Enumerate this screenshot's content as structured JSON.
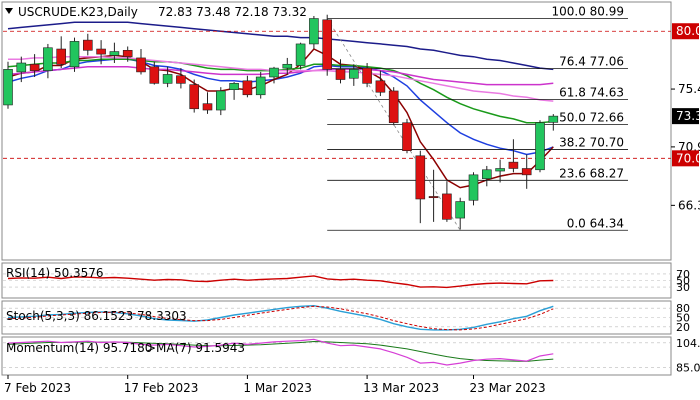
{
  "header": {
    "symbol": "USCRUDE.K23,Daily",
    "ohlc": "72.83 73.48 72.18 73.32"
  },
  "indicators": {
    "rsi_label": "RSI(14) 50.3576",
    "stoch_label": "Stoch(5,3,3) 86.1523 78.3303",
    "momentum_label": "Momentum(14) 95.7180",
    "momentum_ma_label": ">MA(7) 91.5943"
  },
  "colors": {
    "bull": "#22c55e",
    "bear": "#dd1111",
    "ema_blue": "#1e3fe0",
    "ema_red": "#8b0000",
    "ema_green": "#1a9a1a",
    "ma_violet": "#cc33cc",
    "ma_pink": "#ea7ae2",
    "ma_navy": "#1c1c8a",
    "fib_line": "#111111",
    "hline_red": "#cc0000",
    "price_tag_bg": "#000000",
    "level_tag_bg": "#cc0000"
  },
  "chart_data": {
    "type": "candlestick",
    "ylim": [
      62.0,
      82.3
    ],
    "dates_label": [
      "7 Feb 2023",
      "17 Feb 2023",
      "1 Mar 2023",
      "13 Mar 2023",
      "23 Mar 2023"
    ],
    "y_ticks": [
      "75.45",
      "70.90",
      "66.30"
    ],
    "current_price": "73.32",
    "level_tags": [
      "80.00",
      "70.00"
    ],
    "level_values": [
      80.0,
      70.0
    ],
    "fib_levels": [
      {
        "label": "100.0 80.99",
        "value": 80.99
      },
      {
        "label": "76.4 77.06",
        "value": 77.06
      },
      {
        "label": "61.8 74.63",
        "value": 74.63
      },
      {
        "label": "50.0 72.66",
        "value": 72.66
      },
      {
        "label": "38.2 70.70",
        "value": 70.7
      },
      {
        "label": "23.6 68.27",
        "value": 68.27
      },
      {
        "label": "0.0 64.34",
        "value": 64.34
      }
    ],
    "candles": [
      {
        "o": 74.2,
        "h": 77.6,
        "l": 73.9,
        "c": 77.0
      },
      {
        "o": 76.8,
        "h": 78.0,
        "l": 76.0,
        "c": 77.5
      },
      {
        "o": 77.4,
        "h": 78.2,
        "l": 76.4,
        "c": 76.9
      },
      {
        "o": 76.9,
        "h": 79.0,
        "l": 76.3,
        "c": 78.7
      },
      {
        "o": 78.6,
        "h": 79.6,
        "l": 77.1,
        "c": 77.4
      },
      {
        "o": 77.2,
        "h": 79.5,
        "l": 76.8,
        "c": 79.2
      },
      {
        "o": 79.3,
        "h": 79.8,
        "l": 78.1,
        "c": 78.5
      },
      {
        "o": 78.6,
        "h": 79.3,
        "l": 77.4,
        "c": 78.2
      },
      {
        "o": 78.1,
        "h": 79.1,
        "l": 77.5,
        "c": 78.4
      },
      {
        "o": 78.5,
        "h": 78.8,
        "l": 77.6,
        "c": 78.0
      },
      {
        "o": 77.9,
        "h": 78.6,
        "l": 76.6,
        "c": 76.8
      },
      {
        "o": 77.2,
        "h": 77.6,
        "l": 75.8,
        "c": 75.9
      },
      {
        "o": 75.9,
        "h": 77.2,
        "l": 75.6,
        "c": 76.6
      },
      {
        "o": 76.5,
        "h": 77.1,
        "l": 75.5,
        "c": 75.9
      },
      {
        "o": 75.8,
        "h": 76.2,
        "l": 73.6,
        "c": 73.9
      },
      {
        "o": 74.3,
        "h": 75.2,
        "l": 73.5,
        "c": 73.8
      },
      {
        "o": 73.8,
        "h": 75.6,
        "l": 73.4,
        "c": 75.3
      },
      {
        "o": 75.4,
        "h": 76.0,
        "l": 74.6,
        "c": 75.9
      },
      {
        "o": 76.1,
        "h": 76.5,
        "l": 74.8,
        "c": 75.0
      },
      {
        "o": 75.0,
        "h": 76.8,
        "l": 74.7,
        "c": 76.4
      },
      {
        "o": 76.4,
        "h": 77.2,
        "l": 75.9,
        "c": 77.1
      },
      {
        "o": 77.1,
        "h": 77.9,
        "l": 76.6,
        "c": 77.4
      },
      {
        "o": 77.3,
        "h": 79.1,
        "l": 77.0,
        "c": 79.0
      },
      {
        "o": 79.0,
        "h": 81.2,
        "l": 78.6,
        "c": 81.0
      },
      {
        "o": 80.9,
        "h": 81.3,
        "l": 76.5,
        "c": 77.0
      },
      {
        "o": 77.0,
        "h": 77.8,
        "l": 75.9,
        "c": 76.2
      },
      {
        "o": 76.3,
        "h": 77.4,
        "l": 75.7,
        "c": 77.0
      },
      {
        "o": 77.1,
        "h": 77.5,
        "l": 75.6,
        "c": 75.9
      },
      {
        "o": 76.1,
        "h": 76.9,
        "l": 74.9,
        "c": 75.2
      },
      {
        "o": 75.3,
        "h": 75.6,
        "l": 72.6,
        "c": 72.8
      },
      {
        "o": 72.8,
        "h": 73.1,
        "l": 70.4,
        "c": 70.6
      },
      {
        "o": 70.2,
        "h": 70.6,
        "l": 64.9,
        "c": 66.8
      },
      {
        "o": 67.0,
        "h": 69.1,
        "l": 65.0,
        "c": 66.9
      },
      {
        "o": 67.2,
        "h": 68.2,
        "l": 65.0,
        "c": 65.2
      },
      {
        "o": 65.3,
        "h": 66.9,
        "l": 64.4,
        "c": 66.6
      },
      {
        "o": 66.7,
        "h": 68.9,
        "l": 66.3,
        "c": 68.7
      },
      {
        "o": 68.4,
        "h": 69.4,
        "l": 67.8,
        "c": 69.1
      },
      {
        "o": 69.0,
        "h": 69.9,
        "l": 68.1,
        "c": 69.2
      },
      {
        "o": 69.7,
        "h": 71.5,
        "l": 68.9,
        "c": 69.2
      },
      {
        "o": 69.2,
        "h": 70.3,
        "l": 67.6,
        "c": 68.7
      },
      {
        "o": 69.1,
        "h": 73.0,
        "l": 68.9,
        "c": 72.8
      },
      {
        "o": 72.83,
        "h": 73.48,
        "l": 72.18,
        "c": 73.32
      }
    ],
    "series": [
      {
        "name": "ema_blue",
        "values": [
          76.0,
          76.3,
          76.5,
          76.9,
          77.0,
          77.4,
          77.6,
          77.7,
          77.8,
          77.8,
          77.6,
          77.3,
          77.2,
          77.0,
          76.6,
          76.3,
          76.1,
          76.1,
          76.0,
          76.1,
          76.2,
          76.4,
          76.7,
          77.2,
          77.3,
          77.2,
          77.2,
          77.1,
          76.9,
          76.4,
          75.7,
          74.6,
          73.7,
          72.8,
          72.0,
          71.5,
          71.1,
          70.8,
          70.6,
          70.3,
          70.5,
          70.9
        ]
      },
      {
        "name": "ema_red",
        "values": [
          76.4,
          76.7,
          76.8,
          77.3,
          77.3,
          77.8,
          77.9,
          78.0,
          78.1,
          78.0,
          77.6,
          77.0,
          76.9,
          76.6,
          75.9,
          75.3,
          75.3,
          75.5,
          75.4,
          75.7,
          76.2,
          76.6,
          77.4,
          78.6,
          78.1,
          77.4,
          77.3,
          76.9,
          76.3,
          75.1,
          73.6,
          71.3,
          69.9,
          68.3,
          67.7,
          67.9,
          68.3,
          68.6,
          68.8,
          68.8,
          69.8,
          70.9
        ]
      },
      {
        "name": "ema_green",
        "values": [
          77.2,
          77.3,
          77.4,
          77.5,
          77.5,
          77.7,
          77.7,
          77.8,
          77.8,
          77.8,
          77.7,
          77.6,
          77.6,
          77.5,
          77.3,
          77.1,
          77.0,
          77.0,
          76.9,
          76.9,
          76.9,
          77.0,
          77.1,
          77.4,
          77.4,
          77.3,
          77.3,
          77.2,
          77.1,
          76.9,
          76.5,
          75.9,
          75.4,
          74.8,
          74.3,
          73.9,
          73.6,
          73.3,
          73.1,
          72.8,
          72.8,
          72.9
        ]
      },
      {
        "name": "ma_violet",
        "values": [
          76.6,
          76.7,
          76.8,
          76.9,
          77.0,
          77.1,
          77.2,
          77.2,
          77.2,
          77.2,
          77.1,
          77.0,
          77.0,
          76.9,
          76.8,
          76.7,
          76.6,
          76.6,
          76.6,
          76.6,
          76.7,
          76.7,
          76.8,
          76.9,
          77.0,
          77.0,
          77.0,
          77.0,
          76.9,
          76.8,
          76.6,
          76.4,
          76.2,
          76.1,
          76.0,
          75.9,
          75.8,
          75.8,
          75.8,
          75.8,
          75.8,
          75.9
        ]
      },
      {
        "name": "ma_pink",
        "values": [
          77.8,
          77.8,
          77.9,
          77.9,
          78.0,
          78.0,
          78.0,
          78.0,
          77.9,
          77.9,
          77.8,
          77.7,
          77.6,
          77.5,
          77.4,
          77.3,
          77.2,
          77.1,
          77.0,
          77.0,
          76.9,
          76.9,
          76.9,
          76.9,
          76.9,
          76.8,
          76.8,
          76.7,
          76.6,
          76.5,
          76.3,
          76.1,
          75.9,
          75.7,
          75.5,
          75.3,
          75.2,
          75.1,
          74.9,
          74.8,
          74.6,
          74.5
        ]
      },
      {
        "name": "ma_navy",
        "values": [
          80.2,
          80.3,
          80.4,
          80.5,
          80.6,
          80.7,
          80.7,
          80.7,
          80.7,
          80.7,
          80.6,
          80.5,
          80.4,
          80.3,
          80.2,
          80.1,
          80.0,
          79.9,
          79.8,
          79.7,
          79.6,
          79.6,
          79.5,
          79.5,
          79.4,
          79.3,
          79.2,
          79.1,
          79.0,
          78.9,
          78.8,
          78.6,
          78.5,
          78.3,
          78.1,
          78.0,
          77.8,
          77.7,
          77.5,
          77.3,
          77.1,
          77.0
        ]
      }
    ],
    "rsi": {
      "ticks": [
        "70",
        "50",
        "30"
      ],
      "ylim": [
        0,
        100
      ],
      "values": [
        56,
        58,
        57,
        60,
        56,
        61,
        60,
        58,
        59,
        57,
        54,
        51,
        53,
        52,
        48,
        47,
        51,
        54,
        51,
        53,
        55,
        56,
        60,
        64,
        55,
        52,
        54,
        51,
        49,
        43,
        38,
        30,
        31,
        29,
        33,
        38,
        41,
        42,
        41,
        40,
        49,
        50
      ]
    },
    "stoch": {
      "ticks": [
        "80",
        "50",
        "20"
      ],
      "ylim": [
        0,
        100
      ],
      "k_values": [
        50,
        52,
        54,
        58,
        60,
        64,
        66,
        68,
        66,
        62,
        55,
        46,
        42,
        40,
        38,
        42,
        50,
        58,
        64,
        70,
        76,
        82,
        86,
        88,
        80,
        70,
        62,
        54,
        44,
        30,
        20,
        12,
        10,
        10,
        12,
        18,
        28,
        36,
        46,
        54,
        72,
        86
      ],
      "d_values": [
        46,
        48,
        51,
        55,
        58,
        61,
        64,
        66,
        67,
        65,
        60,
        53,
        47,
        43,
        40,
        40,
        44,
        50,
        57,
        64,
        70,
        76,
        82,
        86,
        84,
        78,
        70,
        62,
        52,
        40,
        30,
        21,
        14,
        11,
        10,
        13,
        19,
        28,
        37,
        46,
        60,
        78
      ]
    },
    "momentum": {
      "ticks": [
        "104.235",
        "85.0274"
      ],
      "ylim": [
        80.0,
        108.0
      ],
      "values": [
        104,
        104.5,
        105,
        105.5,
        104.5,
        105,
        105.5,
        104.5,
        105,
        104.5,
        103,
        102.5,
        103,
        102,
        101,
        101.5,
        102.5,
        104,
        103,
        104,
        105,
        105.5,
        106,
        107,
        104,
        102,
        102.5,
        101,
        99.5,
        96.5,
        93,
        88.5,
        89,
        87,
        88.5,
        90.5,
        91.5,
        92,
        91,
        90,
        94,
        95.7
      ],
      "ma_values": [
        103,
        103.5,
        104,
        104.5,
        104.5,
        104.7,
        104.9,
        104.8,
        104.9,
        104.7,
        104.3,
        103.8,
        103.5,
        103,
        102.5,
        102.1,
        102,
        102.2,
        102.5,
        102.8,
        103.3,
        103.9,
        104.5,
        105.3,
        105,
        104.5,
        104,
        103.5,
        102.5,
        101,
        99.5,
        97.5,
        95.5,
        93.5,
        92,
        91,
        90.5,
        90.2,
        90,
        89.8,
        90.8,
        91.6
      ]
    }
  }
}
